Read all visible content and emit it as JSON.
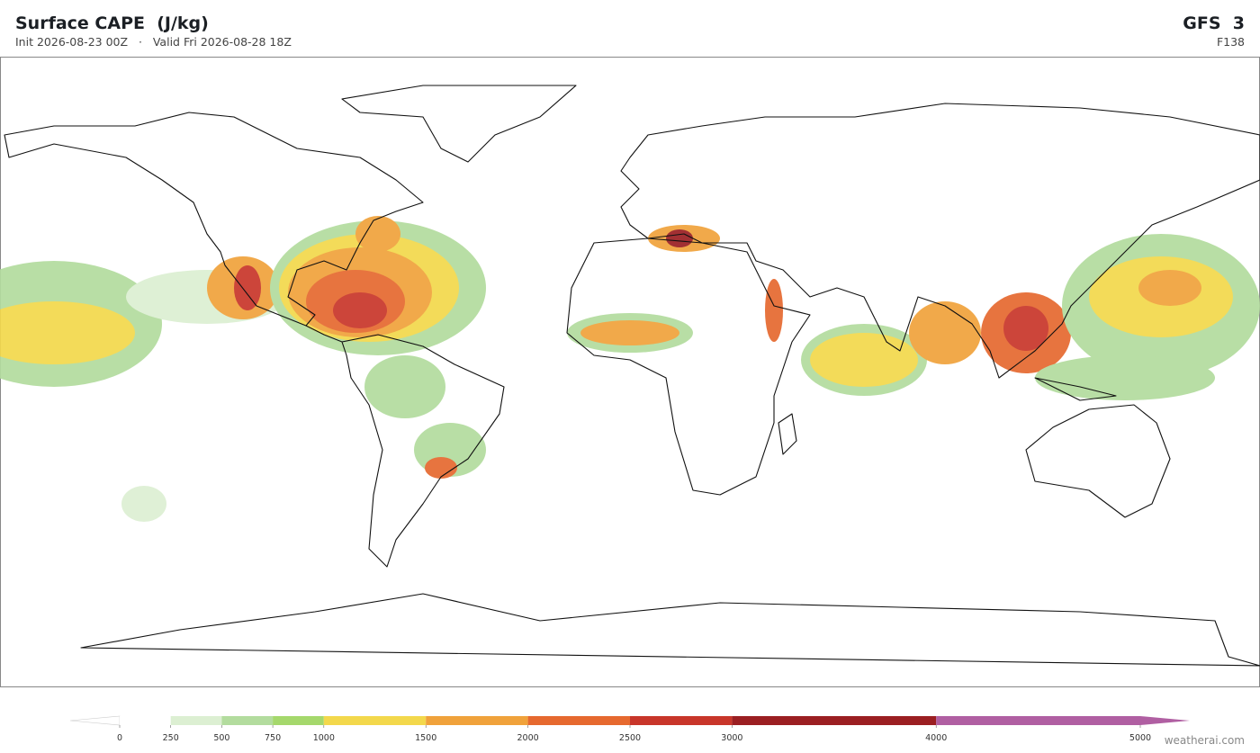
{
  "header": {
    "title": "Surface CAPE  (J/kg)",
    "subtitle": "Init 2026-08-23 00Z   ·   Valid Fri 2026-08-28 18Z",
    "model": "GFS  3",
    "forecast_hour": "F138"
  },
  "colorbar": {
    "range": [
      0,
      5000
    ],
    "ticks": [
      0,
      250,
      500,
      750,
      1000,
      1500,
      2000,
      2500,
      3000,
      4000,
      5000
    ],
    "colors": [
      "#ffffff",
      "#dcefd2",
      "#b3dc9e",
      "#a5d86c",
      "#f3d84c",
      "#f0a23b",
      "#e6692f",
      "#c8362a",
      "#9b1f22",
      "#b05fa2"
    ],
    "under_color": "#ffffff",
    "over_color": "#b05fa2"
  },
  "footer": {
    "watermark": "weatherai.com"
  }
}
